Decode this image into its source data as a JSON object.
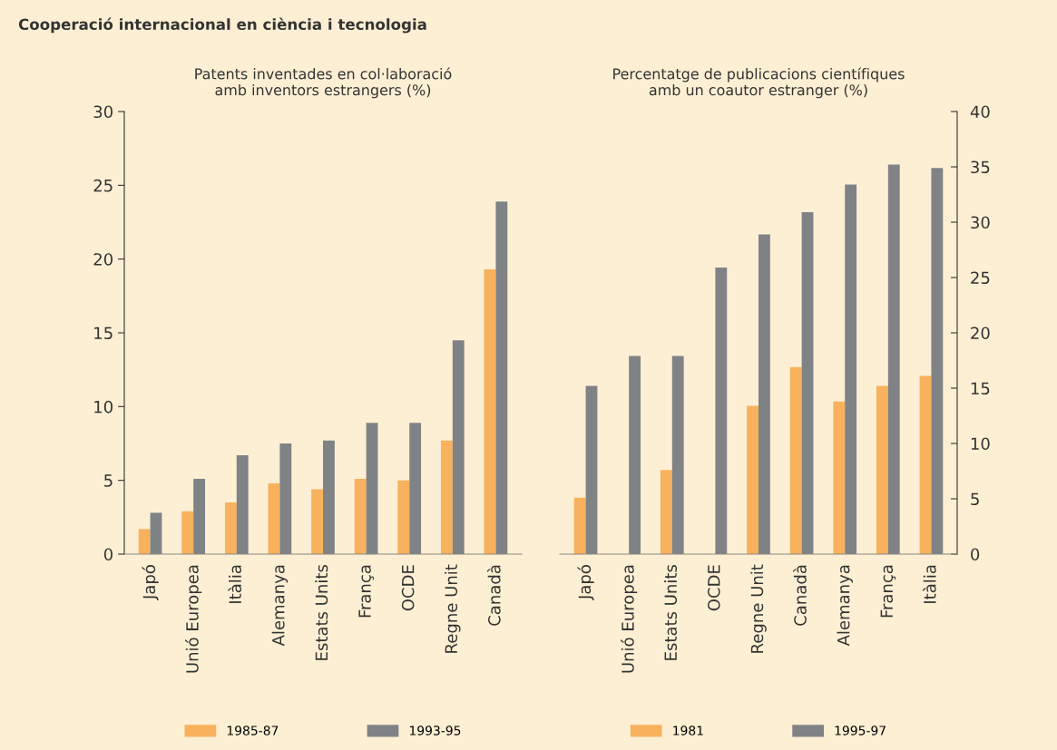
{
  "chart_data": [
    {
      "type": "bar",
      "title": "Cooperació internacional en ciència i tecnologia",
      "subtitle": "Patents inventades en col·laboració\namb inventors estrangers (%)",
      "categories": [
        "Japó",
        "Unió Europea",
        "Itàlia",
        "Alemanya",
        "Estats Units",
        "França",
        "OCDE",
        "Regne Unit",
        "Canadà"
      ],
      "series": [
        {
          "name": "1985-87",
          "color": "#f8b15c",
          "values": [
            1.7,
            2.9,
            3.5,
            4.8,
            4.4,
            5.1,
            5.0,
            7.7,
            19.3
          ]
        },
        {
          "name": "1993-95",
          "color": "#7f8386",
          "values": [
            2.8,
            5.1,
            6.7,
            7.5,
            7.7,
            8.9,
            8.9,
            14.5,
            23.9
          ]
        }
      ],
      "ylim": [
        0,
        30
      ],
      "yticks": [
        0,
        5,
        10,
        15,
        20,
        25,
        30
      ],
      "grid": false,
      "legend": "bottom"
    },
    {
      "type": "bar",
      "subtitle": "Percentatge de publicacions científiques\namb un coautor estranger (%)",
      "categories": [
        "Japó",
        "Unió Europea",
        "Estats Units",
        "OCDE",
        "Regne Unit",
        "Canadà",
        "Alemanya",
        "França",
        "Itàlia"
      ],
      "series": [
        {
          "name": "1981",
          "color": "#f8b15c",
          "axis": "y2",
          "values": [
            5.1,
            null,
            7.6,
            null,
            13.4,
            16.9,
            13.8,
            15.2,
            16.1
          ]
        },
        {
          "name": "1995-97",
          "color": "#7f8386",
          "axis": "y2",
          "values": [
            15.2,
            17.9,
            17.9,
            25.9,
            28.9,
            30.9,
            33.4,
            35.2,
            34.9
          ]
        }
      ],
      "y2lim": [
        0,
        40
      ],
      "y2ticks": [
        0,
        5,
        10,
        15,
        20,
        25,
        30,
        35,
        40
      ],
      "grid": false,
      "legend": "bottom"
    }
  ]
}
